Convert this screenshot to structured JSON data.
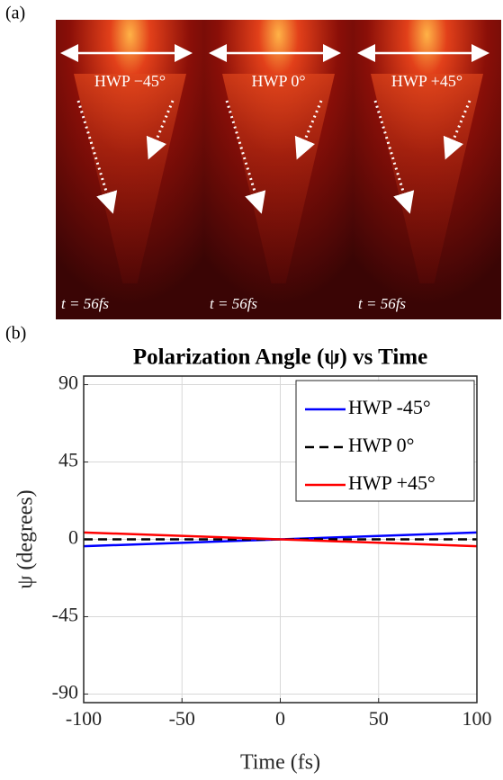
{
  "figure": {
    "panel_a_label": "(a)",
    "panel_b_label": "(b)",
    "frames": [
      {
        "label": "HWP −45°",
        "time": "t = 56fs"
      },
      {
        "label": "HWP 0°",
        "time": "t = 56fs"
      },
      {
        "label": "HWP +45°",
        "time": "t = 56fs"
      }
    ]
  },
  "chart_data": {
    "type": "line",
    "title": "Polarization Angle (ψ) vs Time",
    "xlabel": "Time (fs)",
    "ylabel": "ψ (degrees)",
    "x": [
      -100,
      0,
      100
    ],
    "series": [
      {
        "name": "HWP -45°",
        "color": "#0000ff",
        "dash": false,
        "values": [
          -4,
          0,
          4
        ]
      },
      {
        "name": "HWP 0°",
        "color": "#000000",
        "dash": true,
        "values": [
          0,
          0,
          0
        ]
      },
      {
        "name": "HWP +45°",
        "color": "#ff0000",
        "dash": false,
        "values": [
          4,
          0,
          -4
        ]
      }
    ],
    "xlim": [
      -100,
      100
    ],
    "xticks": [
      -100,
      -50,
      0,
      50,
      100
    ],
    "ylim": [
      -95,
      95
    ],
    "yticks": [
      -90,
      -45,
      0,
      45,
      90
    ],
    "grid": true,
    "legend": "upper right"
  }
}
